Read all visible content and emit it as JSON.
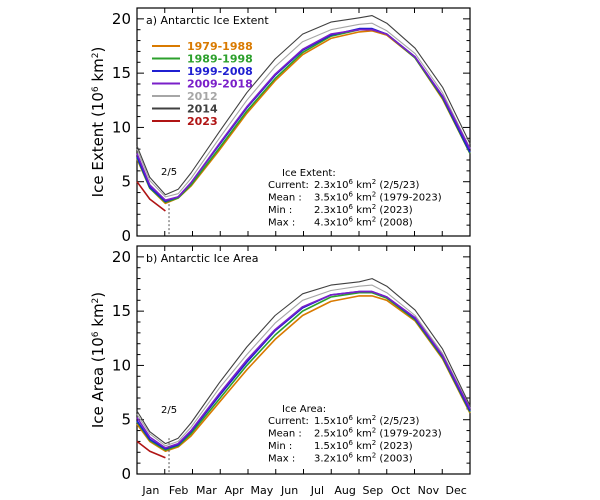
{
  "chart_data": [
    {
      "type": "line",
      "panel": "a",
      "title": "a) Antarctic Ice Extent",
      "ylabel_text": "Ice Extent (10",
      "ylabel_sup": "6",
      "ylabel_unit": " km",
      "ylabel_sup2": "2",
      "ylabel_close": ")",
      "ylim": [
        0,
        21
      ],
      "yticks": [
        "0",
        "5",
        "10",
        "15",
        "20"
      ],
      "months": [
        "Jan",
        "Feb",
        "Mar",
        "Apr",
        "May",
        "Jun",
        "Jul",
        "Aug",
        "Sep",
        "Oct",
        "Nov",
        "Dec"
      ],
      "marker_label": "2/5",
      "legend": [
        {
          "label": "1979-1988",
          "color": "#d97a00"
        },
        {
          "label": "1989-1998",
          "color": "#2ca02c"
        },
        {
          "label": "1999-2008",
          "color": "#1f1fd1"
        },
        {
          "label": "2009-2018",
          "color": "#7a1fc9"
        },
        {
          "label": "2012",
          "color": "#a6a6a6"
        },
        {
          "label": "2014",
          "color": "#404040"
        },
        {
          "label": "2023",
          "color": "#b01414"
        }
      ],
      "x": [
        1,
        15,
        32,
        46,
        60,
        91,
        121,
        152,
        182,
        213,
        244,
        258,
        274,
        305,
        335,
        365
      ],
      "series": [
        {
          "name": "1979-1988",
          "color": "#d97a00",
          "values": [
            7.1,
            4.4,
            3.0,
            3.5,
            4.6,
            7.9,
            11.3,
            14.3,
            16.7,
            18.2,
            18.8,
            18.9,
            18.5,
            16.4,
            12.6,
            7.6
          ]
        },
        {
          "name": "1989-1998",
          "color": "#2ca02c",
          "values": [
            7.2,
            4.4,
            3.1,
            3.5,
            4.7,
            8.1,
            11.5,
            14.5,
            16.9,
            18.4,
            19.0,
            19.0,
            18.6,
            16.4,
            12.7,
            7.6
          ]
        },
        {
          "name": "1999-2008",
          "color": "#1f1fd1",
          "values": [
            7.3,
            4.5,
            3.2,
            3.6,
            4.9,
            8.4,
            11.8,
            14.8,
            17.1,
            18.5,
            19.1,
            19.1,
            18.6,
            16.5,
            12.8,
            7.7
          ]
        },
        {
          "name": "2009-2018",
          "color": "#7a1fc9",
          "values": [
            7.6,
            4.7,
            3.3,
            3.6,
            4.9,
            8.5,
            11.9,
            14.9,
            17.2,
            18.6,
            19.0,
            19.0,
            18.6,
            16.5,
            12.9,
            8.0
          ]
        },
        {
          "name": "2012",
          "color": "#a6a6a6",
          "values": [
            8.0,
            5.1,
            3.6,
            3.9,
            5.3,
            9.0,
            12.5,
            15.6,
            17.9,
            19.0,
            19.5,
            19.6,
            18.9,
            16.8,
            13.2,
            8.1
          ]
        },
        {
          "name": "2014",
          "color": "#404040",
          "values": [
            8.3,
            5.4,
            3.8,
            4.3,
            5.8,
            9.6,
            13.2,
            16.3,
            18.6,
            19.7,
            20.1,
            20.3,
            19.6,
            17.3,
            13.7,
            8.5
          ]
        },
        {
          "name": "2023",
          "color": "#b01414",
          "values": [
            5.0,
            3.4,
            2.3,
            null,
            null,
            null,
            null,
            null,
            null,
            null,
            null,
            null,
            null,
            null,
            null,
            null
          ]
        }
      ],
      "annotation": {
        "heading": "Ice Extent:",
        "rows": [
          {
            "label": "Current:",
            "num": "2.3x10",
            "exp": "6",
            "unit": " km",
            "unit_exp": "2",
            "note": " (2/5/23)"
          },
          {
            "label": "Mean    :",
            "num": "3.5x10",
            "exp": "6",
            "unit": " km",
            "unit_exp": "2",
            "note": " (1979-2023)"
          },
          {
            "label": "Min      :",
            "num": "2.3x10",
            "exp": "6",
            "unit": " km",
            "unit_exp": "2",
            "note": " (2023)"
          },
          {
            "label": "Max     :",
            "num": "4.3x10",
            "exp": "6",
            "unit": " km",
            "unit_exp": "2",
            "note": " (2008)"
          }
        ]
      }
    },
    {
      "type": "line",
      "panel": "b",
      "title": "b) Antarctic Ice Area",
      "ylabel_text": "Ice Area (10",
      "ylabel_sup": "6",
      "ylabel_unit": " km",
      "ylabel_sup2": "2",
      "ylabel_close": ")",
      "ylim": [
        0,
        21
      ],
      "yticks": [
        "0",
        "5",
        "10",
        "15",
        "20"
      ],
      "months": [
        "Jan",
        "Feb",
        "Mar",
        "Apr",
        "May",
        "Jun",
        "Jul",
        "Aug",
        "Sep",
        "Oct",
        "Nov",
        "Dec"
      ],
      "marker_label": "2/5",
      "x": [
        1,
        15,
        32,
        46,
        60,
        91,
        121,
        152,
        182,
        213,
        244,
        258,
        274,
        305,
        335,
        365
      ],
      "series": [
        {
          "name": "1979-1988",
          "color": "#d97a00",
          "values": [
            4.6,
            3.0,
            2.1,
            2.5,
            3.5,
            6.6,
            9.6,
            12.4,
            14.6,
            15.9,
            16.4,
            16.4,
            16.0,
            14.1,
            10.6,
            5.6
          ]
        },
        {
          "name": "1989-1998",
          "color": "#2ca02c",
          "values": [
            4.8,
            3.1,
            2.2,
            2.6,
            3.7,
            6.9,
            10.0,
            12.8,
            15.0,
            16.3,
            16.7,
            16.7,
            16.2,
            14.2,
            10.7,
            5.7
          ]
        },
        {
          "name": "1999-2008",
          "color": "#1f1fd1",
          "values": [
            4.9,
            3.2,
            2.3,
            2.7,
            3.9,
            7.2,
            10.3,
            13.2,
            15.3,
            16.5,
            16.8,
            16.8,
            16.3,
            14.3,
            10.8,
            5.8
          ]
        },
        {
          "name": "2009-2018",
          "color": "#7a1fc9",
          "values": [
            5.2,
            3.4,
            2.4,
            2.8,
            4.0,
            7.4,
            10.5,
            13.3,
            15.4,
            16.5,
            16.8,
            16.8,
            16.3,
            14.4,
            10.9,
            6.0
          ]
        },
        {
          "name": "2012",
          "color": "#a6a6a6",
          "values": [
            5.5,
            3.7,
            2.6,
            3.0,
            4.3,
            7.9,
            11.0,
            13.9,
            16.0,
            16.9,
            17.3,
            17.4,
            16.7,
            14.6,
            11.1,
            6.1
          ]
        },
        {
          "name": "2014",
          "color": "#404040",
          "values": [
            5.8,
            3.9,
            2.8,
            3.3,
            4.7,
            8.4,
            11.7,
            14.6,
            16.6,
            17.4,
            17.7,
            18.0,
            17.3,
            15.1,
            11.5,
            6.3
          ]
        },
        {
          "name": "2023",
          "color": "#b01414",
          "values": [
            3.0,
            2.1,
            1.5,
            null,
            null,
            null,
            null,
            null,
            null,
            null,
            null,
            null,
            null,
            null,
            null,
            null
          ]
        }
      ],
      "annotation": {
        "heading": "Ice Area:",
        "rows": [
          {
            "label": "Current:",
            "num": "1.5x10",
            "exp": "6",
            "unit": " km",
            "unit_exp": "2",
            "note": " (2/5/23)"
          },
          {
            "label": "Mean    :",
            "num": "2.5x10",
            "exp": "6",
            "unit": " km",
            "unit_exp": "2",
            "note": " (1979-2023)"
          },
          {
            "label": "Min      :",
            "num": "1.5x10",
            "exp": "6",
            "unit": " km",
            "unit_exp": "2",
            "note": " (2023)"
          },
          {
            "label": "Max     :",
            "num": "3.2x10",
            "exp": "6",
            "unit": " km",
            "unit_exp": "2",
            "note": " (2003)"
          }
        ]
      }
    }
  ]
}
